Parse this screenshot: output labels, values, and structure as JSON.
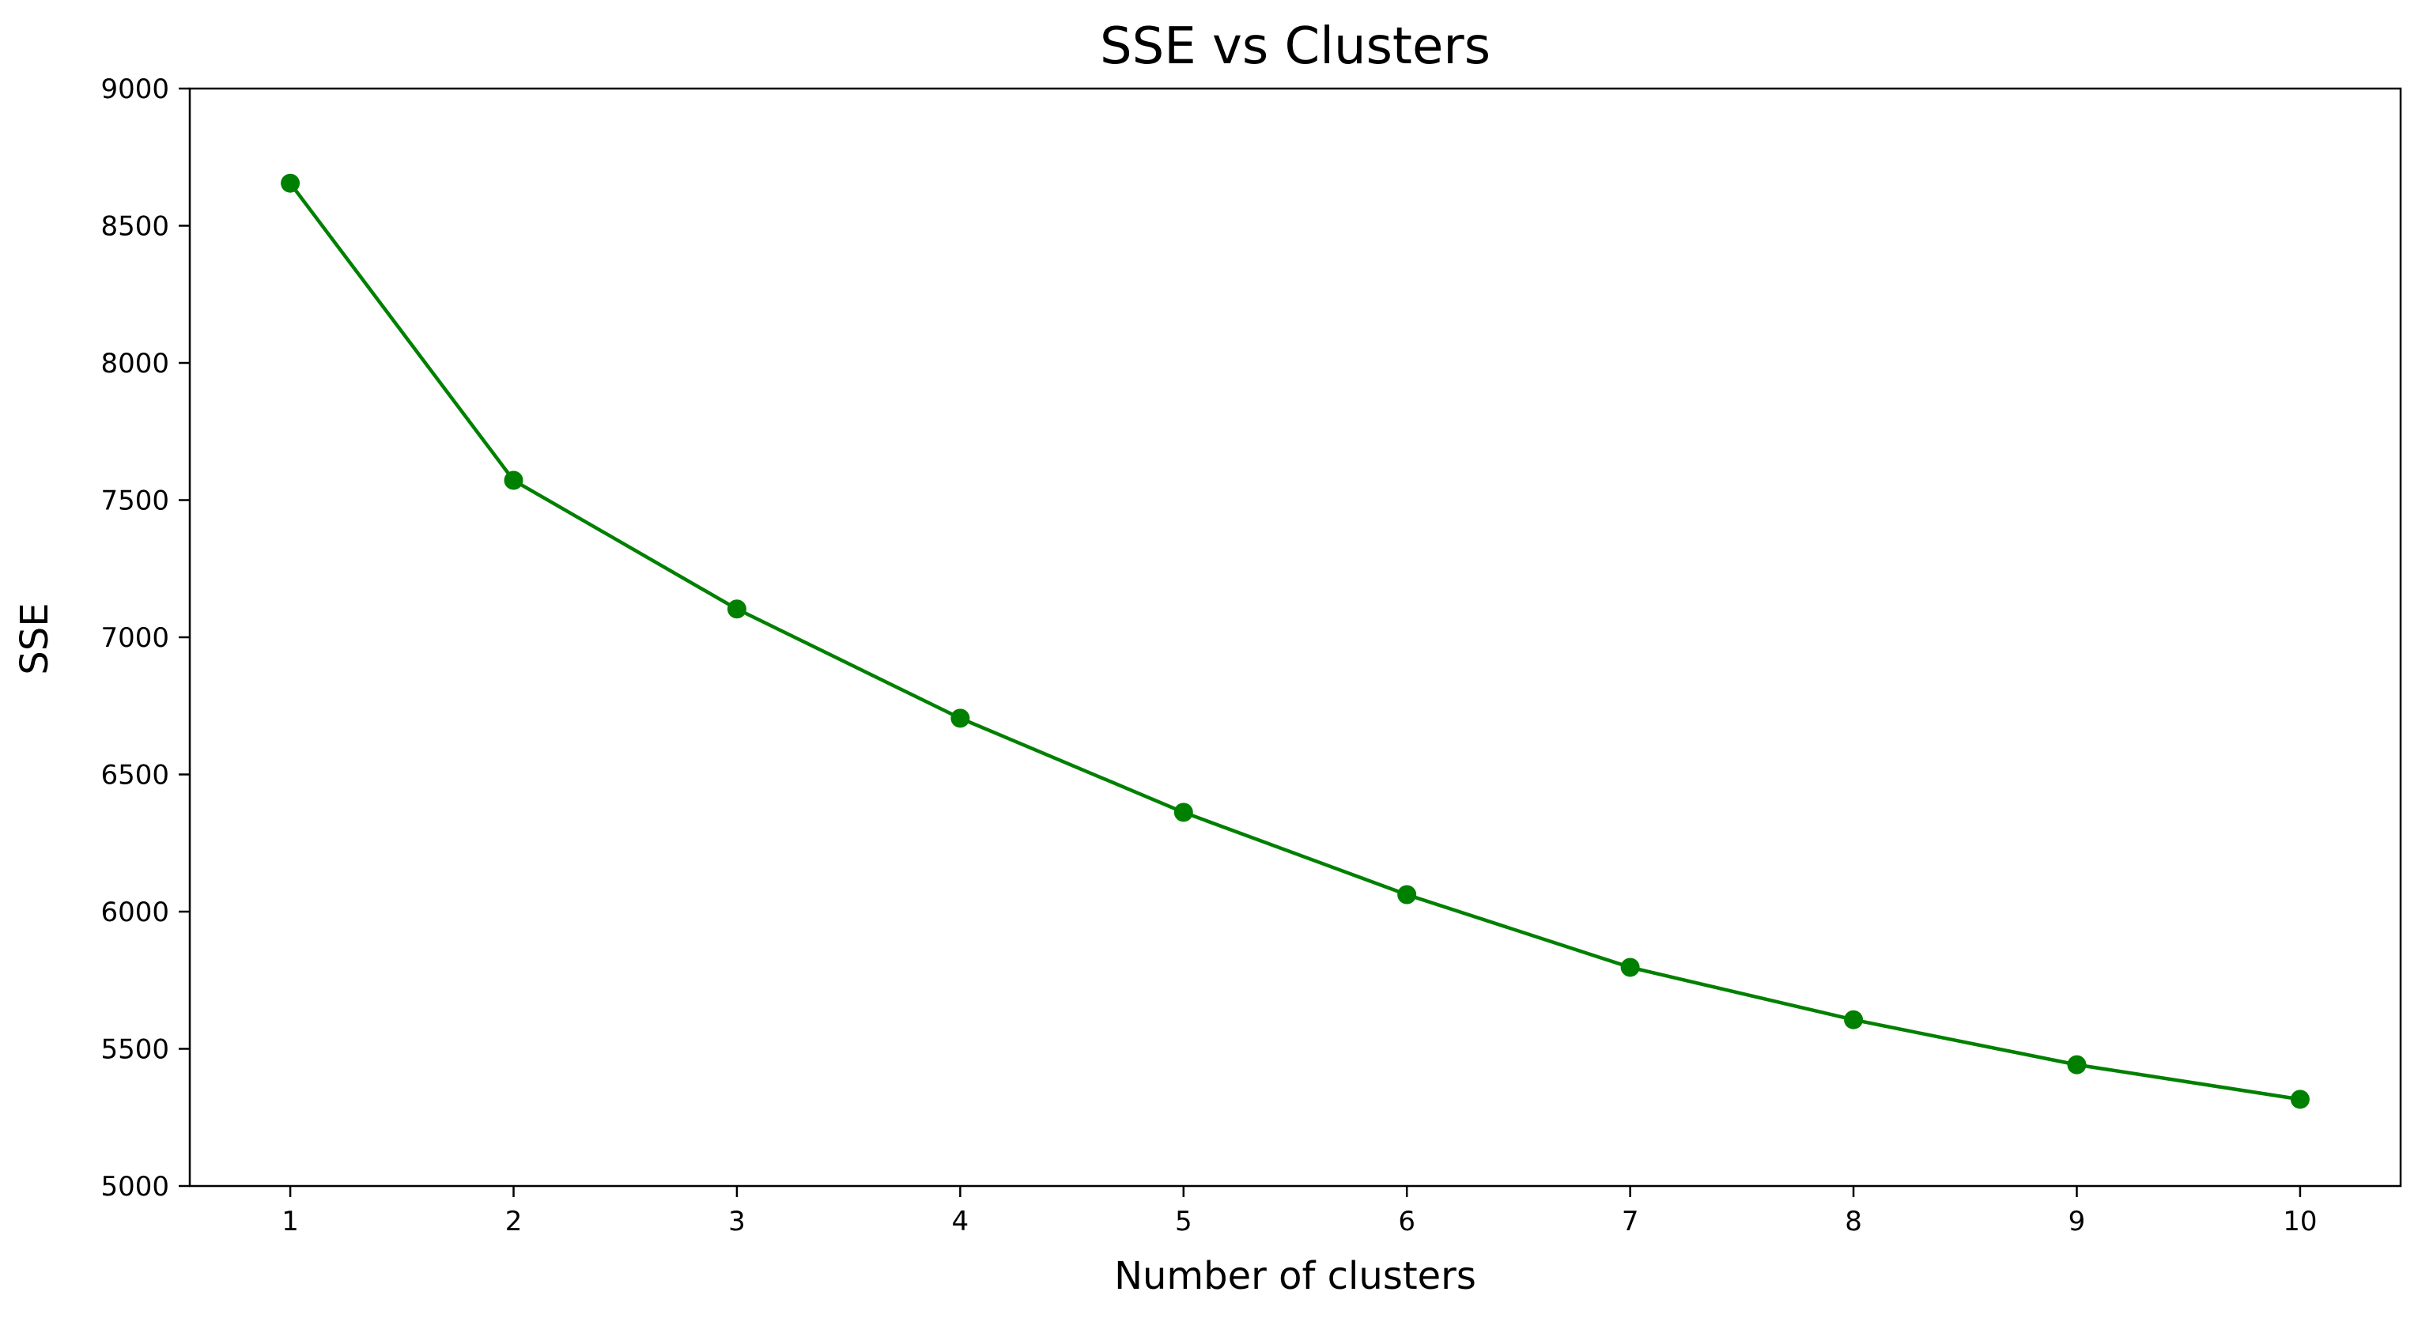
{
  "chart_data": {
    "type": "line",
    "title": "SSE vs Clusters",
    "xlabel": "Number of clusters",
    "ylabel": "SSE",
    "x": [
      1,
      2,
      3,
      4,
      5,
      6,
      7,
      8,
      9,
      10
    ],
    "x_ticks": [
      1,
      2,
      3,
      4,
      5,
      6,
      7,
      8,
      9,
      10
    ],
    "y_ticks": [
      5000,
      5500,
      6000,
      6500,
      7000,
      7500,
      8000,
      8500,
      9000
    ],
    "xlim": [
      0.55,
      10.45
    ],
    "ylim": [
      5000,
      9000
    ],
    "grid": false,
    "series": [
      {
        "values": [
          8655,
          7572,
          7103,
          6705,
          6362,
          6062,
          5797,
          5606,
          5442,
          5316
        ],
        "color": "#008000",
        "marker": "circle"
      }
    ]
  }
}
